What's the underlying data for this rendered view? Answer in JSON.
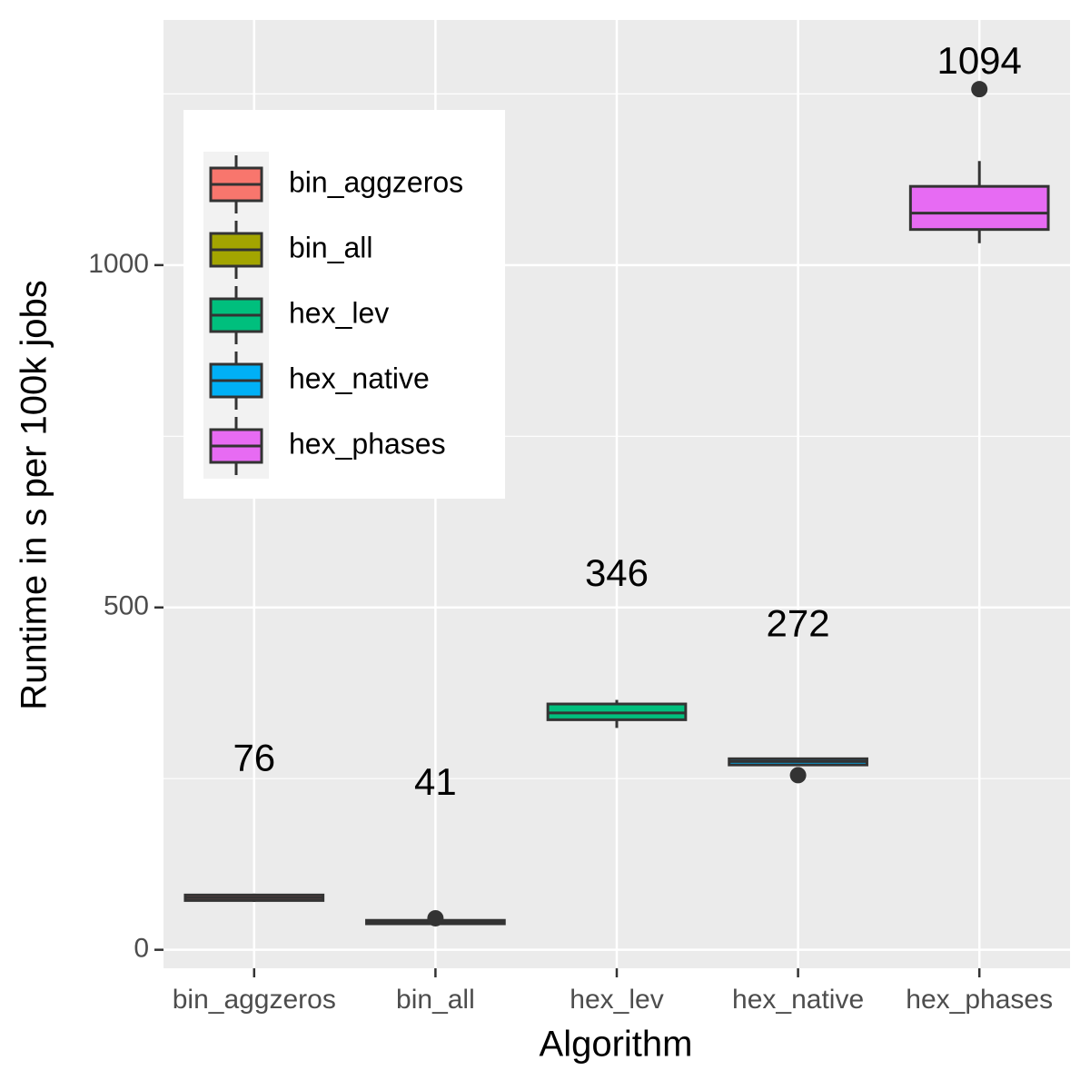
{
  "chart_data": {
    "type": "box",
    "x_label": "Algorithm",
    "y_label": "Runtime in s per 100k jobs",
    "categories": [
      "bin_aggzeros",
      "bin_all",
      "hex_lev",
      "hex_native",
      "hex_phases"
    ],
    "colors": [
      "#F8766D",
      "#A3A500",
      "#00BF7D",
      "#00B0F6",
      "#E76BF3"
    ],
    "boxes": [
      {
        "min": 70,
        "q1": 72,
        "median": 76,
        "q3": 80,
        "max": 82,
        "outliers": []
      },
      {
        "min": 36,
        "q1": 38,
        "median": 41,
        "q3": 43,
        "max": 44,
        "outliers": [
          46
        ]
      },
      {
        "min": 324,
        "q1": 336,
        "median": 346,
        "q3": 359,
        "max": 365,
        "outliers": []
      },
      {
        "min": 269,
        "q1": 270,
        "median": 275,
        "q3": 279,
        "max": 280,
        "outliers": [
          255
        ]
      },
      {
        "min": 1032,
        "q1": 1052,
        "median": 1076,
        "q3": 1115,
        "max": 1152,
        "outliers": [
          1257
        ]
      }
    ],
    "means": [
      76,
      41,
      346,
      272,
      1094
    ],
    "ylim": [
      -27,
      1358
    ],
    "yticks": [
      0,
      500,
      1000
    ],
    "minor_yticks": [
      250,
      750,
      1250
    ],
    "grid": true,
    "legend": "top-left"
  }
}
